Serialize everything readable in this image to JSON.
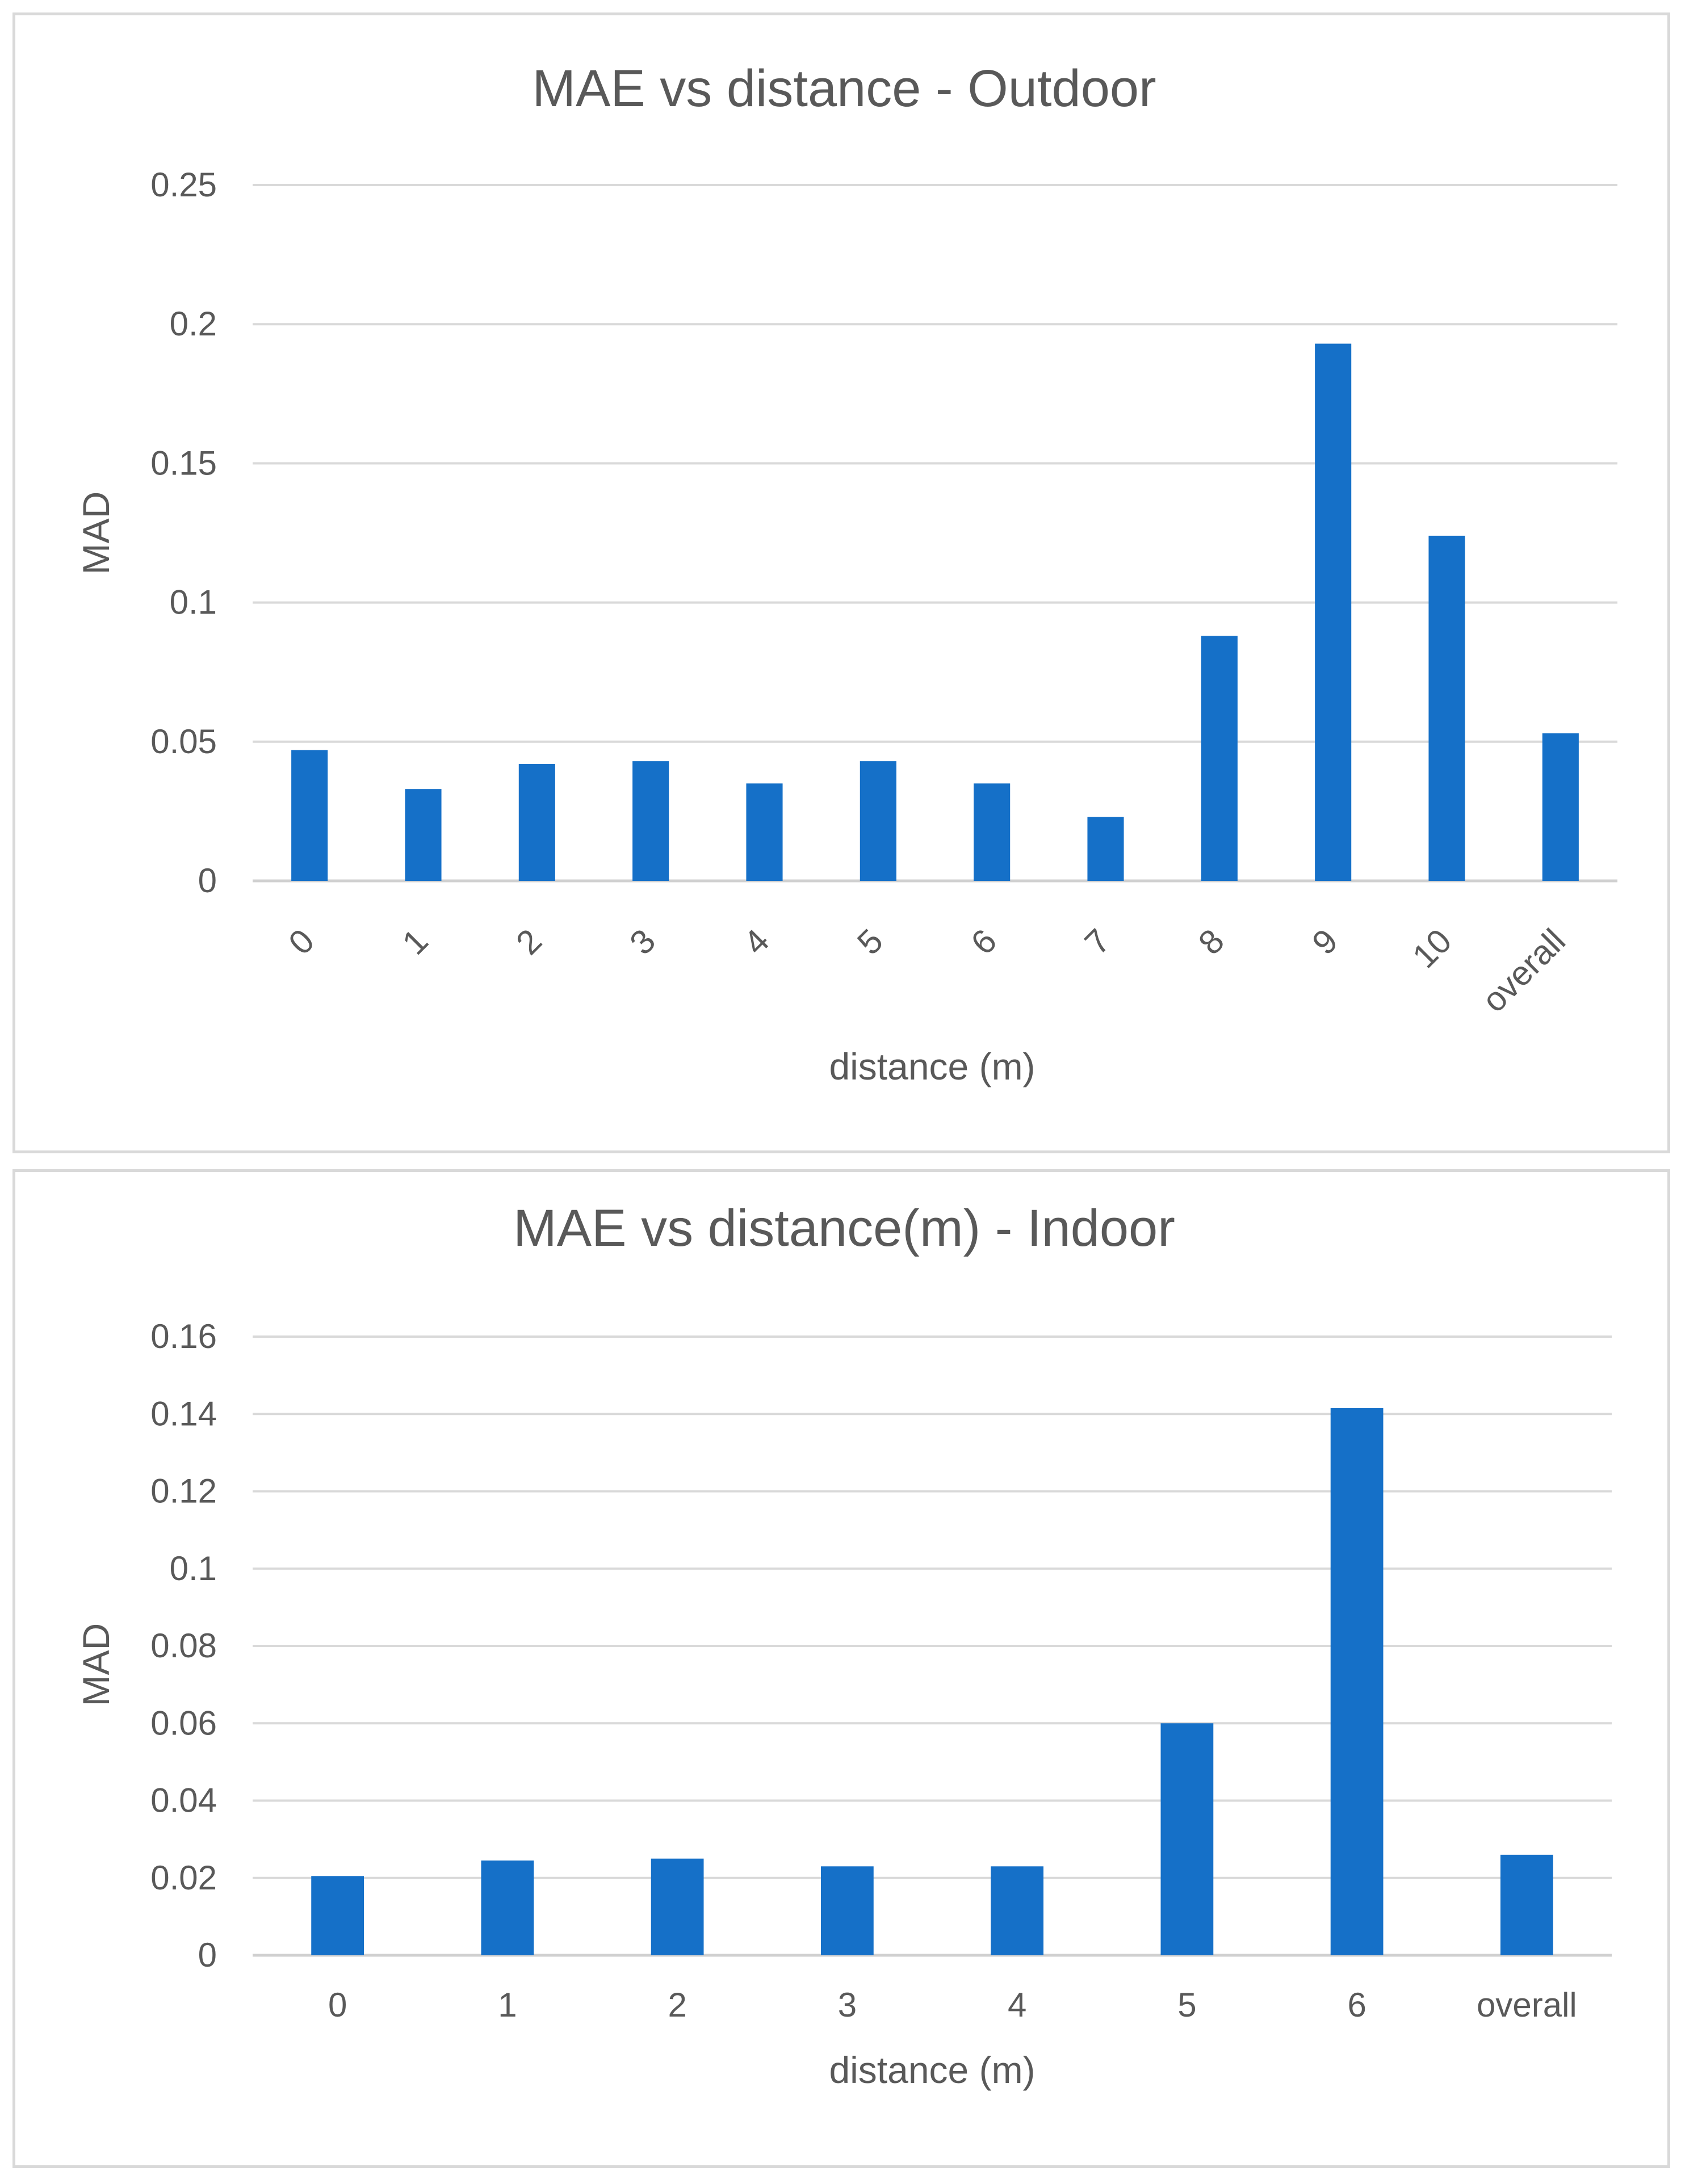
{
  "chart_data": [
    {
      "type": "bar",
      "title": "MAE vs distance - Outdoor",
      "xlabel": "distance (m)",
      "ylabel": "MAD",
      "categories": [
        "0",
        "1",
        "2",
        "3",
        "4",
        "5",
        "6",
        "7",
        "8",
        "9",
        "10",
        "overall"
      ],
      "values": [
        0.047,
        0.033,
        0.042,
        0.043,
        0.035,
        0.043,
        0.035,
        0.023,
        0.088,
        0.193,
        0.124,
        0.053
      ],
      "ylim": [
        0,
        0.25
      ],
      "yticks": [
        "0",
        "0.05",
        "0.1",
        "0.15",
        "0.2",
        "0.25"
      ],
      "grid": true,
      "rotated_tick_labels": true,
      "color": "#1570c8"
    },
    {
      "type": "bar",
      "title": "MAE vs distance(m) - Indoor",
      "xlabel": "distance (m)",
      "ylabel": "MAD",
      "categories": [
        "0",
        "1",
        "2",
        "3",
        "4",
        "5",
        "6",
        "overall"
      ],
      "values": [
        0.0205,
        0.0245,
        0.025,
        0.023,
        0.023,
        0.06,
        0.1415,
        0.026
      ],
      "ylim": [
        0,
        0.16
      ],
      "yticks": [
        "0",
        "0.02",
        "0.04",
        "0.06",
        "0.08",
        "0.1",
        "0.12",
        "0.14",
        "0.16"
      ],
      "grid": true,
      "rotated_tick_labels": false,
      "color": "#1570c8"
    }
  ]
}
